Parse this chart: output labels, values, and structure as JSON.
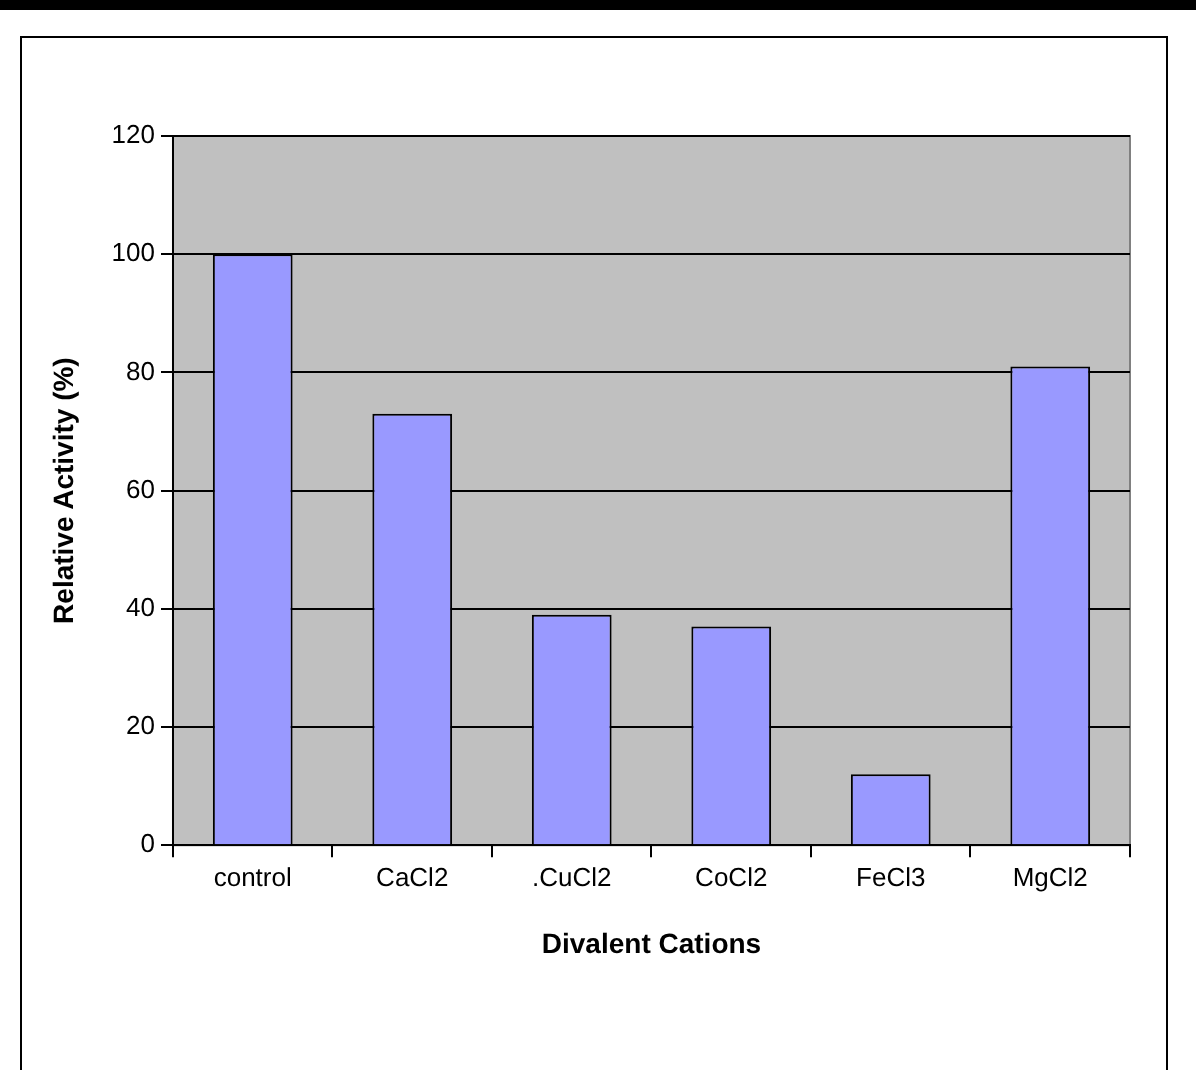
{
  "chart_data": {
    "type": "bar",
    "xlabel": "Divalent Cations",
    "ylabel": "Relative Activity (%)",
    "categories": [
      "control",
      "CaCl2",
      ".CuCl2",
      "CoCl2",
      "FeCl3",
      "MgCl2"
    ],
    "values": [
      100,
      73,
      39,
      37,
      12,
      81
    ],
    "color": "#9999ff",
    "ylim": [
      0,
      120
    ],
    "yticks": [
      0,
      20,
      40,
      60,
      80,
      100,
      120
    ],
    "grid": "y",
    "legend": false
  }
}
